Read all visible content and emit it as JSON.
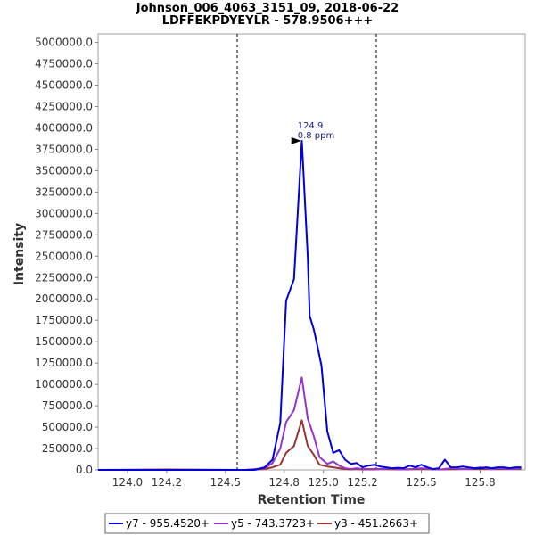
{
  "chart_data": {
    "type": "line",
    "title": "Johnson_006_4063_3151_09, 2018-06-22",
    "subtitle": "LDFFEKPDYEYLR - 578.9506+++",
    "xlabel": "Retention Time",
    "ylabel": "Intensity",
    "xlim": [
      123.85,
      126.03
    ],
    "ylim": [
      0,
      5100000
    ],
    "x_ticks": [
      124.0,
      124.2,
      124.5,
      124.8,
      125.0,
      125.2,
      125.5,
      125.8
    ],
    "x_tick_labels": [
      "124.0",
      "124.2",
      "124.5",
      "124.8",
      "125.0",
      "125.2",
      "125.5",
      "125.8"
    ],
    "y_ticks": [
      0,
      250000,
      500000,
      750000,
      1000000,
      1250000,
      1500000,
      1750000,
      2000000,
      2250000,
      2500000,
      2750000,
      3000000,
      3250000,
      3500000,
      3750000,
      4000000,
      4250000,
      4500000,
      4750000,
      5000000
    ],
    "y_tick_labels": [
      "0.0",
      "250000.0",
      "500000.0",
      "750000.0",
      "1000000.0",
      "1250000.0",
      "1500000.0",
      "1750000.0",
      "2000000.0",
      "2250000.0",
      "2500000.0",
      "2750000.0",
      "3000000.0",
      "3250000.0",
      "3500000.0",
      "3750000.0",
      "4000000.0",
      "4250000.0",
      "4500000.0",
      "4750000.0",
      "5000000.0"
    ],
    "boundaries": [
      124.56,
      125.27
    ],
    "grid": false,
    "legend_position": "bottom",
    "annotation": {
      "x": 124.9,
      "y": 3850000,
      "line1": "124.9",
      "line2": "0.8 ppm"
    },
    "series": [
      {
        "name": "y7 - 955.4520+",
        "color": "#0000dd",
        "x": [
          123.85,
          124.0,
          124.2,
          124.4,
          124.56,
          124.65,
          124.7,
          124.74,
          124.78,
          124.81,
          124.85,
          124.89,
          124.92,
          124.93,
          124.95,
          124.96,
          124.99,
          125.02,
          125.05,
          125.08,
          125.11,
          125.14,
          125.17,
          125.2,
          125.23,
          125.26,
          125.29,
          125.32,
          125.35,
          125.38,
          125.41,
          125.44,
          125.47,
          125.5,
          125.53,
          125.56,
          125.59,
          125.62,
          125.65,
          125.68,
          125.71,
          125.74,
          125.77,
          125.8,
          125.83,
          125.86,
          125.89,
          125.92,
          125.95,
          125.98,
          126.01
        ],
        "values": [
          0,
          0,
          0,
          0,
          0,
          0,
          30000,
          120000,
          550000,
          1980000,
          2230000,
          3850000,
          2500000,
          1800000,
          1650000,
          1550000,
          1220000,
          450000,
          200000,
          230000,
          120000,
          70000,
          80000,
          30000,
          50000,
          60000,
          40000,
          30000,
          20000,
          25000,
          20000,
          50000,
          30000,
          60000,
          30000,
          10000,
          20000,
          120000,
          30000,
          30000,
          40000,
          30000,
          20000,
          20000,
          30000,
          20000,
          30000,
          30000,
          20000,
          30000,
          30000
        ]
      },
      {
        "name": "y5 - 743.3723+",
        "color": "#9933cc",
        "x": [
          123.85,
          124.2,
          124.6,
          124.7,
          124.74,
          124.78,
          124.81,
          124.85,
          124.89,
          124.92,
          124.95,
          124.98,
          125.02,
          125.05,
          125.08,
          125.11,
          125.14,
          125.17,
          125.2,
          125.25,
          125.3,
          125.35,
          125.4,
          125.45,
          125.5,
          125.55,
          125.6,
          125.65,
          125.7,
          125.75,
          125.8,
          125.85,
          125.9,
          125.95,
          126.01
        ],
        "values": [
          0,
          0,
          0,
          20000,
          80000,
          250000,
          560000,
          700000,
          1080000,
          600000,
          400000,
          150000,
          70000,
          100000,
          50000,
          20000,
          10000,
          20000,
          10000,
          10000,
          10000,
          20000,
          5000,
          10000,
          20000,
          10000,
          5000,
          20000,
          10000,
          10000,
          30000,
          10000,
          20000,
          10000,
          20000
        ]
      },
      {
        "name": "y3 - 451.2663+",
        "color": "#993333",
        "x": [
          123.85,
          124.2,
          124.6,
          124.7,
          124.74,
          124.78,
          124.81,
          124.85,
          124.89,
          124.92,
          124.95,
          124.98,
          125.02,
          125.05,
          125.08,
          125.11,
          125.14,
          125.17,
          125.2,
          125.25,
          125.3,
          125.4,
          125.5,
          125.6,
          125.7,
          125.8,
          125.9,
          126.01
        ],
        "values": [
          0,
          5000,
          0,
          10000,
          30000,
          60000,
          200000,
          280000,
          580000,
          280000,
          180000,
          60000,
          40000,
          30000,
          20000,
          10000,
          5000,
          10000,
          5000,
          5000,
          10000,
          5000,
          10000,
          5000,
          10000,
          10000,
          10000,
          10000
        ]
      }
    ]
  }
}
